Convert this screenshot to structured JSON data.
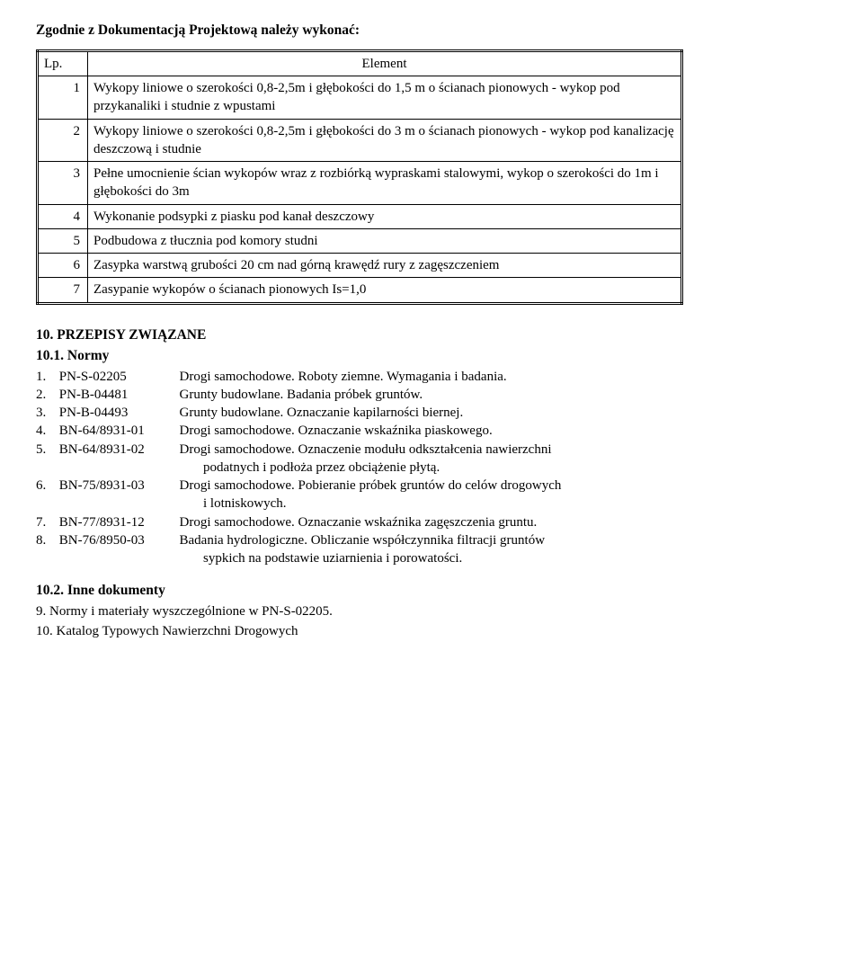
{
  "heading": "Zgodnie z Dokumentacją Projektową należy wykonać:",
  "table": {
    "headers": {
      "lp": "Lp.",
      "element": "Element"
    },
    "rows": [
      {
        "n": "1",
        "text": "Wykopy liniowe o szerokości 0,8-2,5m i głębokości do 1,5 m o ścianach pionowych - wykop pod przykanaliki i studnie z wpustami"
      },
      {
        "n": "2",
        "text": "Wykopy liniowe o szerokości 0,8-2,5m i głębokości do 3 m o ścianach pionowych - wykop pod kanalizację deszczową i studnie"
      },
      {
        "n": "3",
        "text": "Pełne umocnienie ścian wykopów wraz z rozbiórką wypraskami stalowymi, wykop o szerokości do 1m i głębokości do 3m"
      },
      {
        "n": "4",
        "text": "Wykonanie podsypki z piasku pod kanał deszczowy"
      },
      {
        "n": "5",
        "text": "Podbudowa z tłucznia pod komory studni"
      },
      {
        "n": "6",
        "text": "Zasypka warstwą grubości 20 cm nad górną krawędź rury z zagęszczeniem"
      },
      {
        "n": "7",
        "text": "Zasypanie wykopów o ścianach pionowych  Is=1,0"
      }
    ]
  },
  "section10": {
    "title": "10. PRZEPISY ZWIĄZANE"
  },
  "section10_1": {
    "title": "10.1. Normy",
    "refs": [
      {
        "n": "1.",
        "code": "PN-S-02205",
        "desc": "Drogi samochodowe. Roboty ziemne. Wymagania i badania."
      },
      {
        "n": "2.",
        "code": "PN-B-04481",
        "desc": "Grunty budowlane. Badania próbek gruntów."
      },
      {
        "n": "3.",
        "code": "PN-B-04493",
        "desc": "Grunty budowlane. Oznaczanie kapilarności biernej."
      },
      {
        "n": "4.",
        "code": "BN-64/8931-01",
        "desc": "Drogi samochodowe. Oznaczanie wskaźnika piaskowego."
      },
      {
        "n": "5.",
        "code": "BN-64/8931-02",
        "desc": "Drogi samochodowe. Oznaczenie modułu odkształcenia nawierzchni",
        "cont": "podatnych i podłoża przez obciążenie płytą."
      },
      {
        "n": "6.",
        "code": "BN-75/8931-03",
        "desc": "Drogi samochodowe. Pobieranie próbek gruntów do celów drogowych",
        "cont": "i lotniskowych."
      },
      {
        "n": "7.",
        "code": "BN-77/8931-12",
        "desc": "Drogi samochodowe. Oznaczanie wskaźnika zagęszczenia gruntu."
      },
      {
        "n": "8.",
        "code": "BN-76/8950-03",
        "desc": "Badania hydrologiczne. Obliczanie współczynnika filtracji gruntów",
        "cont": "sypkich na podstawie uziarnienia i porowatości."
      }
    ]
  },
  "section10_2": {
    "title": "10.2.  Inne dokumenty",
    "items": [
      "9.   Normy i materiały wyszczególnione w PN-S-02205.",
      "10. Katalog Typowych Nawierzchni Drogowych"
    ]
  }
}
